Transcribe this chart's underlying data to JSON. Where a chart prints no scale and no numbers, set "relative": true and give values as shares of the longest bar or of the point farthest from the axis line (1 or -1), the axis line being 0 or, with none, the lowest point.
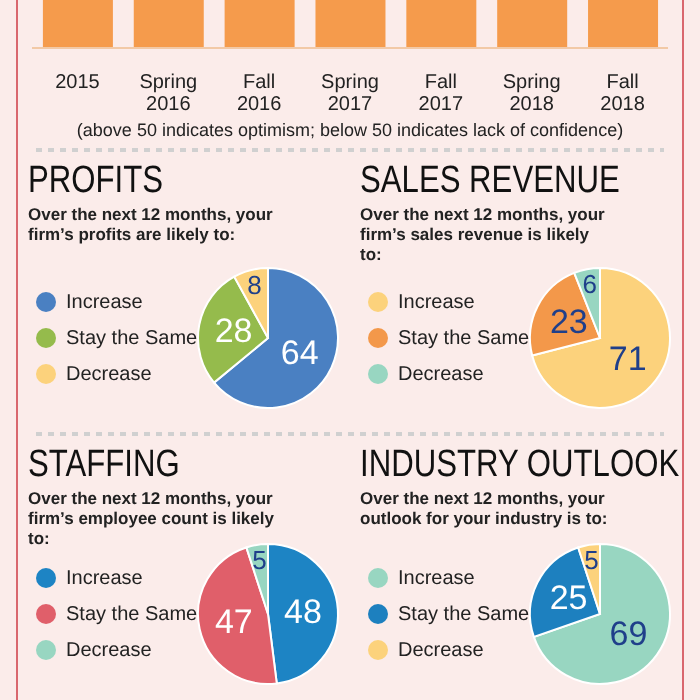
{
  "chart_data": [
    {
      "type": "bar",
      "relative": true,
      "categories": [
        "2015",
        "Spring 2016",
        "Fall 2016",
        "Spring 2017",
        "Fall 2017",
        "Spring 2018",
        "Fall 2018"
      ],
      "values": [
        1,
        1,
        1,
        1,
        1,
        1,
        1
      ],
      "color": "#f59b4c",
      "annotations": [
        "(above 50 indicates optimism; below 50 indicates lack of confidence)"
      ]
    },
    {
      "type": "pie",
      "title": "PROFITS",
      "subtitle": "Over the next 12 months, your firm’s profits are likely to:",
      "categories": [
        "Increase",
        "Stay the Same",
        "Decrease"
      ],
      "values": [
        64,
        28,
        8
      ],
      "colors": [
        "#4a80c2",
        "#95bb4c",
        "#fcd27c"
      ],
      "data_labels": true,
      "legend": "left"
    },
    {
      "type": "pie",
      "title": "SALES REVENUE",
      "subtitle": "Over the next 12 months, your firm’s sales revenue is likely to:",
      "categories": [
        "Increase",
        "Stay the Same",
        "Decrease"
      ],
      "values": [
        71,
        23,
        6
      ],
      "colors": [
        "#fcd27c",
        "#f3984a",
        "#98d6c1"
      ],
      "data_labels": true,
      "legend": "left"
    },
    {
      "type": "pie",
      "title": "STAFFING",
      "subtitle": "Over the next 12 months, your firm’s employee count is likely to:",
      "categories": [
        "Increase",
        "Stay the Same",
        "Decrease"
      ],
      "values": [
        48,
        47,
        5
      ],
      "colors": [
        "#1d84c4",
        "#e05f6a",
        "#98d6c1"
      ],
      "data_labels": true,
      "legend": "left"
    },
    {
      "type": "pie",
      "title": "INDUSTRY OUTLOOK",
      "subtitle": "Over the next 12 months, your outlook for your industry is to:",
      "categories": [
        "Increase",
        "Stay the Same",
        "Decrease"
      ],
      "values": [
        69,
        25,
        5
      ],
      "colors": [
        "#98d6c1",
        "#1d80bf",
        "#fcd27c"
      ],
      "data_labels": true,
      "legend": "left"
    }
  ]
}
